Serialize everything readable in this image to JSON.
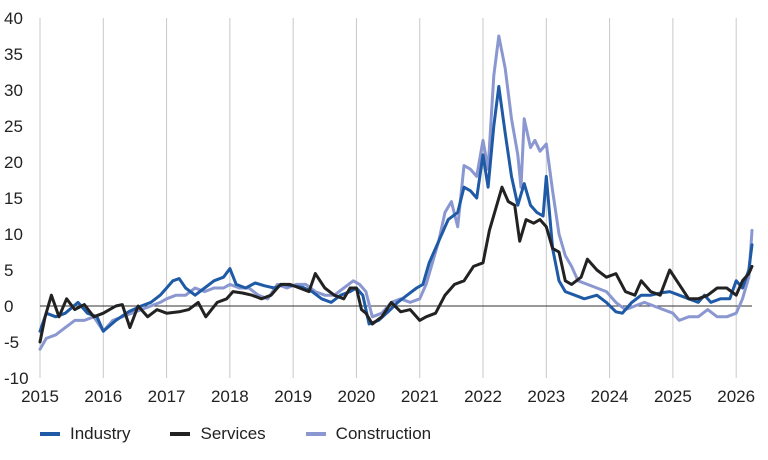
{
  "chart_data": {
    "type": "line",
    "title": "",
    "xlabel": "",
    "ylabel": "",
    "ylim": [
      -10,
      40
    ],
    "yticks": [
      "-10",
      "-5",
      "0",
      "5",
      "10",
      "15",
      "20",
      "25",
      "30",
      "35",
      "40"
    ],
    "xticks": [
      "2015",
      "2016",
      "2017",
      "2018",
      "2019",
      "2020",
      "2021",
      "2022",
      "2023",
      "2024",
      "2025",
      "2026"
    ],
    "x_start_year": 2015,
    "x_end_year": 2026.25,
    "grid": "vertical",
    "legend_position": "bottom",
    "series": [
      {
        "name": "Industry",
        "color": "#1f5aa6",
        "values": [
          [
            2015.0,
            -3.5
          ],
          [
            2015.1,
            -1.0
          ],
          [
            2015.25,
            -1.5
          ],
          [
            2015.4,
            -1.0
          ],
          [
            2015.6,
            0.5
          ],
          [
            2015.75,
            -1.0
          ],
          [
            2015.9,
            -1.5
          ],
          [
            2016.0,
            -3.5
          ],
          [
            2016.2,
            -2.0
          ],
          [
            2016.4,
            -0.8
          ],
          [
            2016.6,
            0.0
          ],
          [
            2016.75,
            0.5
          ],
          [
            2016.9,
            1.5
          ],
          [
            2017.0,
            2.5
          ],
          [
            2017.1,
            3.5
          ],
          [
            2017.2,
            3.8
          ],
          [
            2017.3,
            2.5
          ],
          [
            2017.45,
            1.5
          ],
          [
            2017.6,
            2.5
          ],
          [
            2017.75,
            3.5
          ],
          [
            2017.9,
            4.0
          ],
          [
            2018.0,
            5.2
          ],
          [
            2018.1,
            3.0
          ],
          [
            2018.25,
            2.5
          ],
          [
            2018.4,
            3.2
          ],
          [
            2018.55,
            2.8
          ],
          [
            2018.7,
            2.5
          ],
          [
            2018.85,
            3.0
          ],
          [
            2019.0,
            2.8
          ],
          [
            2019.15,
            2.6
          ],
          [
            2019.3,
            2.0
          ],
          [
            2019.45,
            1.0
          ],
          [
            2019.6,
            0.5
          ],
          [
            2019.75,
            1.5
          ],
          [
            2019.9,
            2.0
          ],
          [
            2020.0,
            2.5
          ],
          [
            2020.1,
            1.5
          ],
          [
            2020.2,
            -2.5
          ],
          [
            2020.35,
            -2.0
          ],
          [
            2020.5,
            -0.8
          ],
          [
            2020.65,
            0.5
          ],
          [
            2020.8,
            1.5
          ],
          [
            2020.95,
            2.5
          ],
          [
            2021.05,
            3.0
          ],
          [
            2021.15,
            6.0
          ],
          [
            2021.3,
            9.0
          ],
          [
            2021.45,
            12.0
          ],
          [
            2021.6,
            13.0
          ],
          [
            2021.7,
            16.5
          ],
          [
            2021.8,
            16.0
          ],
          [
            2021.9,
            15.0
          ],
          [
            2022.0,
            21.0
          ],
          [
            2022.08,
            16.5
          ],
          [
            2022.17,
            25.0
          ],
          [
            2022.25,
            30.5
          ],
          [
            2022.35,
            24.0
          ],
          [
            2022.45,
            18.0
          ],
          [
            2022.55,
            14.0
          ],
          [
            2022.65,
            17.0
          ],
          [
            2022.75,
            14.0
          ],
          [
            2022.85,
            13.0
          ],
          [
            2022.95,
            12.5
          ],
          [
            2023.0,
            18.0
          ],
          [
            2023.1,
            8.0
          ],
          [
            2023.2,
            3.5
          ],
          [
            2023.3,
            2.0
          ],
          [
            2023.45,
            1.5
          ],
          [
            2023.6,
            1.0
          ],
          [
            2023.8,
            1.5
          ],
          [
            2023.95,
            0.5
          ],
          [
            2024.1,
            -0.8
          ],
          [
            2024.2,
            -1.0
          ],
          [
            2024.35,
            0.5
          ],
          [
            2024.5,
            1.5
          ],
          [
            2024.65,
            1.5
          ],
          [
            2024.8,
            1.8
          ],
          [
            2024.95,
            2.0
          ],
          [
            2025.1,
            1.5
          ],
          [
            2025.25,
            1.0
          ],
          [
            2025.4,
            0.5
          ],
          [
            2025.5,
            1.5
          ],
          [
            2025.6,
            0.5
          ],
          [
            2025.75,
            1.0
          ],
          [
            2025.9,
            1.0
          ],
          [
            2026.0,
            3.5
          ],
          [
            2026.1,
            2.5
          ],
          [
            2026.2,
            5.0
          ],
          [
            2026.25,
            8.5
          ]
        ]
      },
      {
        "name": "Services",
        "color": "#222222",
        "values": [
          [
            2015.0,
            -5.0
          ],
          [
            2015.08,
            -1.5
          ],
          [
            2015.18,
            1.5
          ],
          [
            2015.3,
            -1.5
          ],
          [
            2015.42,
            1.0
          ],
          [
            2015.55,
            -0.5
          ],
          [
            2015.7,
            0.2
          ],
          [
            2015.85,
            -1.5
          ],
          [
            2016.0,
            -1.0
          ],
          [
            2016.1,
            -0.5
          ],
          [
            2016.2,
            0.0
          ],
          [
            2016.3,
            0.2
          ],
          [
            2016.42,
            -3.0
          ],
          [
            2016.55,
            0.0
          ],
          [
            2016.7,
            -1.5
          ],
          [
            2016.85,
            -0.5
          ],
          [
            2017.0,
            -1.0
          ],
          [
            2017.2,
            -0.8
          ],
          [
            2017.35,
            -0.5
          ],
          [
            2017.5,
            0.5
          ],
          [
            2017.62,
            -1.5
          ],
          [
            2017.8,
            0.5
          ],
          [
            2017.95,
            1.0
          ],
          [
            2018.05,
            2.0
          ],
          [
            2018.2,
            1.8
          ],
          [
            2018.35,
            1.5
          ],
          [
            2018.5,
            1.0
          ],
          [
            2018.65,
            1.5
          ],
          [
            2018.8,
            3.0
          ],
          [
            2018.95,
            3.0
          ],
          [
            2019.1,
            2.5
          ],
          [
            2019.25,
            2.0
          ],
          [
            2019.35,
            4.5
          ],
          [
            2019.5,
            2.5
          ],
          [
            2019.65,
            1.5
          ],
          [
            2019.8,
            1.0
          ],
          [
            2019.9,
            2.5
          ],
          [
            2020.0,
            2.5
          ],
          [
            2020.08,
            -0.5
          ],
          [
            2020.15,
            -1.0
          ],
          [
            2020.25,
            -2.5
          ],
          [
            2020.4,
            -1.5
          ],
          [
            2020.55,
            0.5
          ],
          [
            2020.7,
            -0.8
          ],
          [
            2020.85,
            -0.5
          ],
          [
            2021.0,
            -2.0
          ],
          [
            2021.1,
            -1.5
          ],
          [
            2021.25,
            -1.0
          ],
          [
            2021.4,
            1.5
          ],
          [
            2021.55,
            3.0
          ],
          [
            2021.7,
            3.5
          ],
          [
            2021.85,
            5.5
          ],
          [
            2022.0,
            6.0
          ],
          [
            2022.1,
            10.5
          ],
          [
            2022.2,
            13.5
          ],
          [
            2022.3,
            16.5
          ],
          [
            2022.4,
            14.5
          ],
          [
            2022.5,
            14.0
          ],
          [
            2022.58,
            9.0
          ],
          [
            2022.68,
            12.0
          ],
          [
            2022.8,
            11.5
          ],
          [
            2022.9,
            12.0
          ],
          [
            2023.0,
            11.0
          ],
          [
            2023.1,
            8.0
          ],
          [
            2023.2,
            7.5
          ],
          [
            2023.3,
            3.5
          ],
          [
            2023.4,
            3.0
          ],
          [
            2023.55,
            4.0
          ],
          [
            2023.65,
            6.5
          ],
          [
            2023.8,
            5.0
          ],
          [
            2023.95,
            4.0
          ],
          [
            2024.1,
            4.5
          ],
          [
            2024.25,
            2.0
          ],
          [
            2024.4,
            1.5
          ],
          [
            2024.5,
            3.5
          ],
          [
            2024.65,
            2.0
          ],
          [
            2024.8,
            1.5
          ],
          [
            2024.95,
            5.0
          ],
          [
            2025.1,
            3.0
          ],
          [
            2025.25,
            1.0
          ],
          [
            2025.4,
            1.0
          ],
          [
            2025.55,
            1.5
          ],
          [
            2025.7,
            2.5
          ],
          [
            2025.85,
            2.5
          ],
          [
            2026.0,
            1.5
          ],
          [
            2026.1,
            3.5
          ],
          [
            2026.2,
            4.5
          ],
          [
            2026.25,
            5.5
          ]
        ]
      },
      {
        "name": "Construction",
        "color": "#8a97d0",
        "values": [
          [
            2015.0,
            -6.0
          ],
          [
            2015.1,
            -4.5
          ],
          [
            2015.25,
            -4.0
          ],
          [
            2015.4,
            -3.0
          ],
          [
            2015.55,
            -2.0
          ],
          [
            2015.7,
            -2.0
          ],
          [
            2015.85,
            -1.5
          ],
          [
            2016.0,
            -3.5
          ],
          [
            2016.15,
            -2.0
          ],
          [
            2016.3,
            -1.5
          ],
          [
            2016.45,
            -1.0
          ],
          [
            2016.6,
            -0.5
          ],
          [
            2016.75,
            0.0
          ],
          [
            2016.9,
            0.5
          ],
          [
            2017.0,
            1.0
          ],
          [
            2017.15,
            1.5
          ],
          [
            2017.3,
            1.5
          ],
          [
            2017.45,
            2.5
          ],
          [
            2017.6,
            2.0
          ],
          [
            2017.75,
            2.5
          ],
          [
            2017.9,
            2.5
          ],
          [
            2018.0,
            3.0
          ],
          [
            2018.15,
            2.5
          ],
          [
            2018.3,
            2.5
          ],
          [
            2018.45,
            1.5
          ],
          [
            2018.6,
            1.0
          ],
          [
            2018.75,
            3.0
          ],
          [
            2018.9,
            2.5
          ],
          [
            2019.05,
            3.0
          ],
          [
            2019.2,
            3.0
          ],
          [
            2019.35,
            2.0
          ],
          [
            2019.5,
            1.5
          ],
          [
            2019.65,
            1.5
          ],
          [
            2019.8,
            2.5
          ],
          [
            2019.95,
            3.5
          ],
          [
            2020.05,
            3.0
          ],
          [
            2020.15,
            2.0
          ],
          [
            2020.25,
            -1.5
          ],
          [
            2020.4,
            -1.0
          ],
          [
            2020.55,
            0.5
          ],
          [
            2020.7,
            1.0
          ],
          [
            2020.85,
            0.5
          ],
          [
            2021.0,
            1.0
          ],
          [
            2021.1,
            3.0
          ],
          [
            2021.2,
            6.0
          ],
          [
            2021.3,
            9.0
          ],
          [
            2021.4,
            13.0
          ],
          [
            2021.5,
            14.5
          ],
          [
            2021.6,
            11.0
          ],
          [
            2021.7,
            19.5
          ],
          [
            2021.8,
            19.0
          ],
          [
            2021.9,
            18.0
          ],
          [
            2022.0,
            23.0
          ],
          [
            2022.08,
            19.0
          ],
          [
            2022.17,
            32.0
          ],
          [
            2022.25,
            37.5
          ],
          [
            2022.35,
            33.0
          ],
          [
            2022.45,
            26.0
          ],
          [
            2022.55,
            21.0
          ],
          [
            2022.6,
            16.5
          ],
          [
            2022.65,
            26.0
          ],
          [
            2022.75,
            22.0
          ],
          [
            2022.82,
            23.0
          ],
          [
            2022.9,
            21.5
          ],
          [
            2023.0,
            22.5
          ],
          [
            2023.1,
            16.0
          ],
          [
            2023.2,
            10.0
          ],
          [
            2023.3,
            7.0
          ],
          [
            2023.4,
            5.5
          ],
          [
            2023.5,
            3.5
          ],
          [
            2023.65,
            3.0
          ],
          [
            2023.8,
            2.5
          ],
          [
            2023.95,
            2.0
          ],
          [
            2024.1,
            0.5
          ],
          [
            2024.25,
            -0.5
          ],
          [
            2024.4,
            0.0
          ],
          [
            2024.55,
            0.5
          ],
          [
            2024.7,
            0.0
          ],
          [
            2024.85,
            -0.5
          ],
          [
            2025.0,
            -1.0
          ],
          [
            2025.1,
            -2.0
          ],
          [
            2025.25,
            -1.5
          ],
          [
            2025.4,
            -1.5
          ],
          [
            2025.55,
            -0.5
          ],
          [
            2025.7,
            -1.5
          ],
          [
            2025.85,
            -1.5
          ],
          [
            2026.0,
            -1.0
          ],
          [
            2026.1,
            1.0
          ],
          [
            2026.2,
            4.0
          ],
          [
            2026.25,
            10.5
          ]
        ]
      }
    ]
  }
}
